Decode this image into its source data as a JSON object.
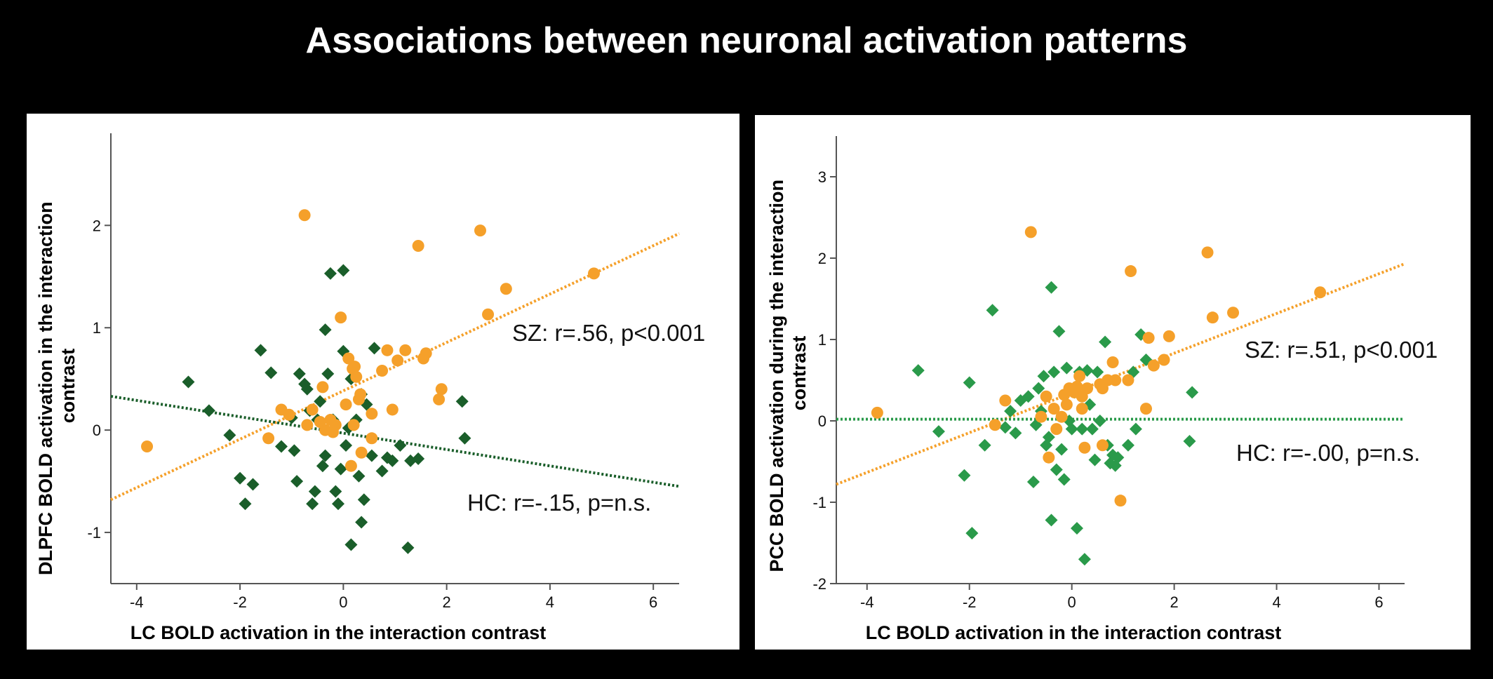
{
  "page": {
    "title": "Associations between neuronal activation patterns"
  },
  "colors": {
    "SZ": "#f5a02a",
    "HC_left": "#1a5e2a",
    "HC_right": "#2a9a4a",
    "background": "#000000",
    "panel": "#ffffff"
  },
  "chart_data": [
    {
      "type": "scatter",
      "title": "",
      "xlabel": "LC BOLD activation in the interaction contrast",
      "ylabel": [
        "DLPFC BOLD activation in the interaction",
        "contrast"
      ],
      "xlim": [
        -4.5,
        6.5
      ],
      "ylim": [
        -1.5,
        2.9
      ],
      "xticks": [
        -4,
        -2,
        0,
        2,
        4,
        6
      ],
      "yticks": [
        -1,
        0,
        1,
        2
      ],
      "xtick_labels": [
        "-4",
        "-2",
        "0",
        "2",
        "4",
        "6"
      ],
      "ytick_labels": [
        "-1",
        "0",
        "1",
        "2"
      ],
      "grid": false,
      "annotations": [
        {
          "text": "SZ: r=.56, p<0.001",
          "group": "SZ"
        },
        {
          "text": "HC: r=-.15, p=n.s.",
          "group": "HC"
        }
      ],
      "series": [
        {
          "group": "SZ",
          "marker": "circle",
          "color": "#f5a02a",
          "fit": {
            "x": [
              -4.5,
              6.5
            ],
            "y": [
              -0.68,
              1.92
            ]
          },
          "points": [
            [
              -3.8,
              -0.16
            ],
            [
              -0.75,
              2.1
            ],
            [
              -1.45,
              -0.08
            ],
            [
              -1.2,
              0.2
            ],
            [
              -1.05,
              0.15
            ],
            [
              -0.7,
              0.05
            ],
            [
              -0.6,
              0.2
            ],
            [
              -0.45,
              0.08
            ],
            [
              -0.4,
              0.42
            ],
            [
              -0.35,
              0.0
            ],
            [
              -0.25,
              0.1
            ],
            [
              -0.15,
              0.05
            ],
            [
              -0.2,
              -0.02
            ],
            [
              -0.05,
              1.1
            ],
            [
              0.05,
              0.25
            ],
            [
              0.1,
              0.7
            ],
            [
              0.18,
              0.6
            ],
            [
              0.22,
              0.62
            ],
            [
              0.25,
              0.52
            ],
            [
              0.3,
              0.3
            ],
            [
              0.33,
              0.35
            ],
            [
              0.2,
              0.05
            ],
            [
              0.15,
              -0.35
            ],
            [
              0.35,
              -0.22
            ],
            [
              0.55,
              -0.08
            ],
            [
              0.55,
              0.16
            ],
            [
              0.75,
              0.58
            ],
            [
              0.85,
              0.78
            ],
            [
              0.95,
              0.2
            ],
            [
              1.05,
              0.68
            ],
            [
              1.2,
              0.78
            ],
            [
              1.45,
              1.8
            ],
            [
              1.55,
              0.7
            ],
            [
              1.6,
              0.75
            ],
            [
              1.85,
              0.3
            ],
            [
              1.9,
              0.4
            ],
            [
              2.65,
              1.95
            ],
            [
              2.8,
              1.13
            ],
            [
              3.15,
              1.38
            ],
            [
              4.85,
              1.53
            ]
          ]
        },
        {
          "group": "HC",
          "marker": "diamond",
          "color": "#1a5e2a",
          "fit": {
            "x": [
              -4.5,
              6.5
            ],
            "y": [
              0.33,
              -0.55
            ]
          },
          "points": [
            [
              -3,
              0.47
            ],
            [
              -2.6,
              0.19
            ],
            [
              -2.2,
              -0.05
            ],
            [
              -2,
              -0.47
            ],
            [
              -1.9,
              -0.72
            ],
            [
              -1.75,
              -0.53
            ],
            [
              -1.6,
              0.78
            ],
            [
              -1.4,
              0.56
            ],
            [
              -1.2,
              -0.16
            ],
            [
              -1.0,
              0.12
            ],
            [
              -0.95,
              -0.2
            ],
            [
              -0.9,
              -0.5
            ],
            [
              -0.85,
              0.55
            ],
            [
              -0.75,
              0.45
            ],
            [
              -0.7,
              0.4
            ],
            [
              -0.65,
              0.19
            ],
            [
              -0.6,
              -0.72
            ],
            [
              -0.55,
              -0.6
            ],
            [
              -0.5,
              0.1
            ],
            [
              -0.45,
              0.28
            ],
            [
              -0.4,
              -0.35
            ],
            [
              -0.35,
              -0.25
            ],
            [
              -0.35,
              0.98
            ],
            [
              -0.3,
              0.55
            ],
            [
              -0.25,
              1.53
            ],
            [
              -0.2,
              0.1
            ],
            [
              -0.15,
              -0.6
            ],
            [
              -0.1,
              -0.72
            ],
            [
              -0.05,
              -0.38
            ],
            [
              0,
              0.77
            ],
            [
              0,
              1.56
            ],
            [
              0.05,
              -0.15
            ],
            [
              0.1,
              0.02
            ],
            [
              0.15,
              0.5
            ],
            [
              0.15,
              -1.12
            ],
            [
              0.25,
              0.1
            ],
            [
              0.3,
              -0.45
            ],
            [
              0.35,
              -0.9
            ],
            [
              0.35,
              0.35
            ],
            [
              0.4,
              -0.68
            ],
            [
              0.45,
              0.25
            ],
            [
              0.55,
              -0.25
            ],
            [
              0.6,
              0.8
            ],
            [
              0.75,
              -0.4
            ],
            [
              0.85,
              -0.27
            ],
            [
              0.95,
              -0.3
            ],
            [
              1.1,
              -0.15
            ],
            [
              1.25,
              -1.15
            ],
            [
              1.3,
              -0.3
            ],
            [
              1.45,
              -0.28
            ],
            [
              2.3,
              0.28
            ],
            [
              2.35,
              -0.08
            ]
          ]
        }
      ]
    },
    {
      "type": "scatter",
      "title": "",
      "xlabel": "LC BOLD activation in the interaction contrast",
      "ylabel": [
        "PCC BOLD activation during the interaction",
        "contrast"
      ],
      "xlim": [
        -4.6,
        6.5
      ],
      "ylim": [
        -2.0,
        3.5
      ],
      "xticks": [
        -4,
        -2,
        0,
        2,
        4,
        6
      ],
      "yticks": [
        -2,
        -1,
        0,
        1,
        2,
        3
      ],
      "xtick_labels": [
        "-4",
        "-2",
        "0",
        "2",
        "4",
        "6"
      ],
      "ytick_labels": [
        "-2",
        "-1",
        "0",
        "1",
        "2",
        "3"
      ],
      "grid": false,
      "annotations": [
        {
          "text": "SZ: r=.51, p<0.001",
          "group": "SZ"
        },
        {
          "text": "HC: r=-.00, p=n.s.",
          "group": "HC"
        }
      ],
      "series": [
        {
          "group": "SZ",
          "marker": "circle",
          "color": "#f5a02a",
          "fit": {
            "x": [
              -4.6,
              6.5
            ],
            "y": [
              -0.78,
              1.93
            ]
          },
          "points": [
            [
              -3.8,
              0.1
            ],
            [
              -1.3,
              0.25
            ],
            [
              -1.5,
              -0.05
            ],
            [
              -0.8,
              2.32
            ],
            [
              -0.6,
              0.05
            ],
            [
              -0.5,
              0.3
            ],
            [
              -0.45,
              -0.45
            ],
            [
              -0.35,
              0.15
            ],
            [
              -0.3,
              -0.1
            ],
            [
              -0.2,
              0.05
            ],
            [
              -0.15,
              0.32
            ],
            [
              -0.1,
              0.2
            ],
            [
              -0.05,
              0.4
            ],
            [
              0.05,
              0.35
            ],
            [
              0.1,
              0.42
            ],
            [
              0.15,
              0.55
            ],
            [
              0.2,
              0.3
            ],
            [
              0.2,
              0.15
            ],
            [
              0.25,
              -0.33
            ],
            [
              0.3,
              0.4
            ],
            [
              0.55,
              0.45
            ],
            [
              0.6,
              -0.3
            ],
            [
              0.6,
              0.4
            ],
            [
              0.8,
              0.72
            ],
            [
              0.7,
              0.5
            ],
            [
              0.85,
              0.5
            ],
            [
              0.95,
              -0.98
            ],
            [
              1.1,
              0.5
            ],
            [
              1.15,
              1.84
            ],
            [
              1.45,
              0.15
            ],
            [
              1.5,
              1.02
            ],
            [
              1.6,
              0.68
            ],
            [
              1.8,
              0.75
            ],
            [
              1.9,
              1.04
            ],
            [
              2.65,
              2.07
            ],
            [
              2.75,
              1.27
            ],
            [
              3.15,
              1.33
            ],
            [
              4.85,
              1.58
            ]
          ]
        },
        {
          "group": "HC",
          "marker": "diamond",
          "color": "#2a9a4a",
          "fit": {
            "x": [
              -4.6,
              6.5
            ],
            "y": [
              0.02,
              0.02
            ]
          },
          "points": [
            [
              -3.0,
              0.62
            ],
            [
              -2.6,
              -0.13
            ],
            [
              -2.1,
              -0.67
            ],
            [
              -2.0,
              0.47
            ],
            [
              -1.95,
              -1.38
            ],
            [
              -1.7,
              -0.3
            ],
            [
              -1.55,
              1.36
            ],
            [
              -1.3,
              -0.08
            ],
            [
              -1.2,
              0.12
            ],
            [
              -1.1,
              -0.15
            ],
            [
              -1.0,
              0.25
            ],
            [
              -0.85,
              0.3
            ],
            [
              -0.75,
              -0.75
            ],
            [
              -0.7,
              -0.05
            ],
            [
              -0.65,
              0.4
            ],
            [
              -0.6,
              0.12
            ],
            [
              -0.55,
              0.55
            ],
            [
              -0.5,
              -0.3
            ],
            [
              -0.45,
              -0.2
            ],
            [
              -0.4,
              1.64
            ],
            [
              -0.4,
              -1.22
            ],
            [
              -0.35,
              0.6
            ],
            [
              -0.3,
              -0.6
            ],
            [
              -0.25,
              1.1
            ],
            [
              -0.2,
              -0.35
            ],
            [
              -0.15,
              -0.72
            ],
            [
              -0.1,
              0.65
            ],
            [
              -0.05,
              0.0
            ],
            [
              0.0,
              -0.1
            ],
            [
              0.05,
              0.35
            ],
            [
              0.1,
              -1.32
            ],
            [
              0.15,
              0.6
            ],
            [
              0.2,
              -0.1
            ],
            [
              0.25,
              -1.7
            ],
            [
              0.3,
              0.62
            ],
            [
              0.35,
              0.2
            ],
            [
              0.4,
              -0.1
            ],
            [
              0.45,
              -0.48
            ],
            [
              0.5,
              0.6
            ],
            [
              0.55,
              0.0
            ],
            [
              0.65,
              0.97
            ],
            [
              0.7,
              -0.3
            ],
            [
              0.75,
              -0.52
            ],
            [
              0.8,
              -0.42
            ],
            [
              0.85,
              -0.55
            ],
            [
              0.9,
              -0.45
            ],
            [
              1.1,
              -0.3
            ],
            [
              1.2,
              0.6
            ],
            [
              1.25,
              -0.1
            ],
            [
              1.35,
              1.06
            ],
            [
              1.45,
              0.75
            ],
            [
              2.3,
              -0.25
            ],
            [
              2.35,
              0.35
            ]
          ]
        }
      ]
    }
  ]
}
